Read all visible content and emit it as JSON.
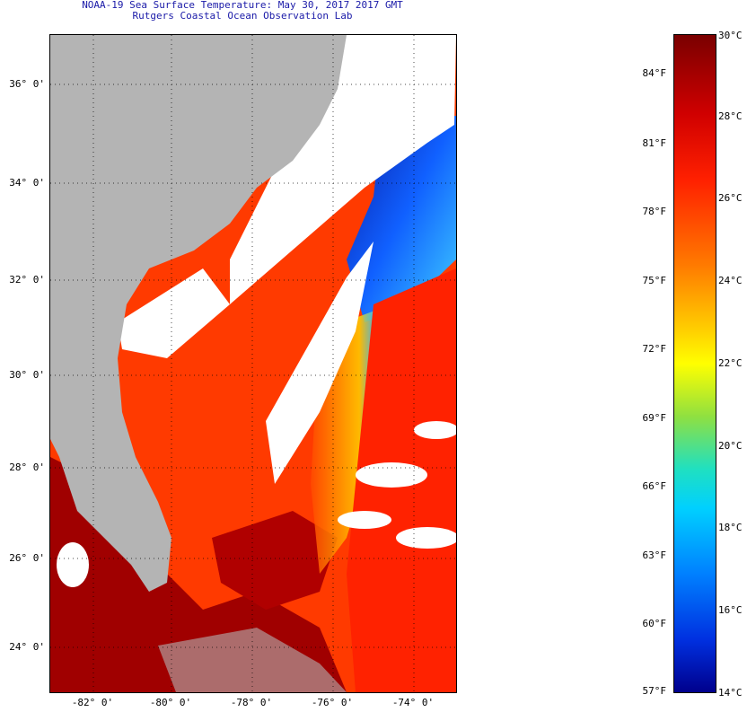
{
  "header": {
    "title": "NOAA-19 Sea Surface Temperature:  May 30, 2017 2017 GMT",
    "subtitle": "Rutgers Coastal Ocean Observation Lab"
  },
  "map": {
    "lat_ticks": [
      "36° 0'",
      "34° 0'",
      "32° 0'",
      "30° 0'",
      "28° 0'",
      "26° 0'",
      "24° 0'"
    ],
    "lon_ticks": [
      "-82° 0'",
      "-80° 0'",
      "-78° 0'",
      "-76° 0'",
      "-74° 0'"
    ],
    "land_color": "#b4b4b4",
    "cloud_color": "#ffffff"
  },
  "colorbar": {
    "celsius": [
      "30°C",
      "28°C",
      "26°C",
      "24°C",
      "22°C",
      "20°C",
      "18°C",
      "16°C",
      "14°C"
    ],
    "fahrenheit": [
      "84°F",
      "81°F",
      "78°F",
      "75°F",
      "72°F",
      "69°F",
      "66°F",
      "63°F",
      "60°F",
      "57°F"
    ],
    "top_color": "#7a0000",
    "bottom_color": "#00008c"
  }
}
